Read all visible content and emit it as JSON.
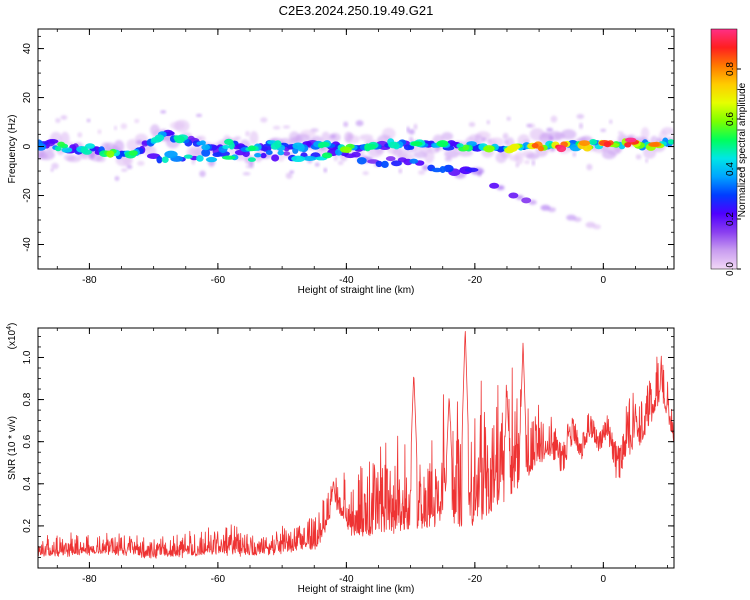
{
  "figure_title": "C2E3.2024.250.19.49.G21",
  "chart_data": [
    {
      "type": "heatmap",
      "xlabel": "Height of straight line (km)",
      "ylabel": "Frequency (Hz)",
      "xlim": [
        -88,
        11
      ],
      "ylim": [
        -50,
        48
      ],
      "xticks": [
        "-80",
        "-60",
        "-40",
        "-20",
        "0"
      ],
      "yticks": [
        "40",
        "20",
        "0",
        "-20",
        "-40"
      ],
      "colorbar": {
        "label": "Normalized spectral amplitude",
        "range": [
          0.0,
          0.96
        ],
        "ticks": [
          "0.0",
          "0.2",
          "0.4",
          "0.6",
          "0.8"
        ],
        "colors": [
          "#f2d8f6",
          "#c99df0",
          "#8a3ff0",
          "#4f00ff",
          "#003cff",
          "#00a4ff",
          "#00e6e6",
          "#00ff5a",
          "#7cff00",
          "#e6ff00",
          "#ffcc00",
          "#ff7a00",
          "#ff1f1f",
          "#ff2f86"
        ]
      },
      "main_band": [
        {
          "x": -88,
          "y": 0.5,
          "amp": 0.3
        },
        {
          "x": -86,
          "y": 1,
          "amp": 0.45
        },
        {
          "x": -84,
          "y": 0,
          "amp": 0.5
        },
        {
          "x": -82,
          "y": -1.5,
          "amp": 0.4
        },
        {
          "x": -80,
          "y": -1,
          "amp": 0.45
        },
        {
          "x": -78,
          "y": -2,
          "amp": 0.5
        },
        {
          "x": -76,
          "y": -3,
          "amp": 0.6
        },
        {
          "x": -74,
          "y": -2.5,
          "amp": 0.55
        },
        {
          "x": -72,
          "y": -1,
          "amp": 0.4
        },
        {
          "x": -70,
          "y": 3,
          "amp": 0.4
        },
        {
          "x": -68,
          "y": 4.5,
          "amp": 0.5
        },
        {
          "x": -66,
          "y": 4,
          "amp": 0.45
        },
        {
          "x": -64,
          "y": 2,
          "amp": 0.4
        },
        {
          "x": -62,
          "y": 0,
          "amp": 0.35
        },
        {
          "x": -60,
          "y": -1,
          "amp": 0.4
        },
        {
          "x": -58,
          "y": 1,
          "amp": 0.45
        },
        {
          "x": -56,
          "y": 0,
          "amp": 0.5
        },
        {
          "x": -54,
          "y": -1,
          "amp": 0.45
        },
        {
          "x": -52,
          "y": 1,
          "amp": 0.4
        },
        {
          "x": -50,
          "y": 0.5,
          "amp": 0.45
        },
        {
          "x": -48,
          "y": -0.5,
          "amp": 0.35
        },
        {
          "x": -46,
          "y": 0.5,
          "amp": 0.4
        },
        {
          "x": -44,
          "y": 0.5,
          "amp": 0.45
        },
        {
          "x": -42,
          "y": 0,
          "amp": 0.5
        },
        {
          "x": -40,
          "y": -1,
          "amp": 0.55
        },
        {
          "x": -38,
          "y": -0.5,
          "amp": 0.5
        },
        {
          "x": -36,
          "y": 1,
          "amp": 0.45
        },
        {
          "x": -34,
          "y": 0.5,
          "amp": 0.4
        },
        {
          "x": -32,
          "y": 1,
          "amp": 0.45
        },
        {
          "x": -30,
          "y": 0,
          "amp": 0.5
        },
        {
          "x": -28,
          "y": 0.5,
          "amp": 0.45
        },
        {
          "x": -26,
          "y": 1,
          "amp": 0.5
        },
        {
          "x": -24,
          "y": 0.5,
          "amp": 0.45
        },
        {
          "x": -22,
          "y": 0,
          "amp": 0.5
        },
        {
          "x": -20,
          "y": 0.5,
          "amp": 0.55
        },
        {
          "x": -18,
          "y": 0,
          "amp": 0.55
        },
        {
          "x": -16,
          "y": -0.5,
          "amp": 0.6
        },
        {
          "x": -14,
          "y": -0.5,
          "amp": 0.65
        },
        {
          "x": -12,
          "y": 0,
          "amp": 0.7
        },
        {
          "x": -10,
          "y": 0,
          "amp": 0.8
        },
        {
          "x": -8,
          "y": 0,
          "amp": 0.9
        },
        {
          "x": -6,
          "y": 0.5,
          "amp": 0.85
        },
        {
          "x": -4,
          "y": 0.5,
          "amp": 0.7
        },
        {
          "x": -2,
          "y": 0.5,
          "amp": 0.75
        },
        {
          "x": 0,
          "y": 1,
          "amp": 0.8
        },
        {
          "x": 2,
          "y": 1,
          "amp": 0.85
        },
        {
          "x": 4,
          "y": 1.5,
          "amp": 0.9
        },
        {
          "x": 6,
          "y": 1,
          "amp": 0.8
        },
        {
          "x": 8,
          "y": 1,
          "amp": 0.75
        },
        {
          "x": 10,
          "y": 1.5,
          "amp": 0.8
        },
        {
          "x": 11,
          "y": 1.5,
          "amp": 0.75
        }
      ],
      "secondary_band": [
        {
          "x": -70,
          "y": -4,
          "amp": 0.4
        },
        {
          "x": -66,
          "y": -5,
          "amp": 0.45
        },
        {
          "x": -62,
          "y": -4,
          "amp": 0.4
        },
        {
          "x": -58,
          "y": -3.5,
          "amp": 0.45
        },
        {
          "x": -54,
          "y": -4,
          "amp": 0.4
        },
        {
          "x": -50,
          "y": -3,
          "amp": 0.35
        },
        {
          "x": -46,
          "y": -4,
          "amp": 0.4
        },
        {
          "x": -42,
          "y": -3,
          "amp": 0.45
        },
        {
          "x": -38,
          "y": -5,
          "amp": 0.35
        },
        {
          "x": -34,
          "y": -6,
          "amp": 0.3
        },
        {
          "x": -30,
          "y": -7,
          "amp": 0.3
        },
        {
          "x": -26,
          "y": -9,
          "amp": 0.3
        },
        {
          "x": -23,
          "y": -10,
          "amp": 0.25
        },
        {
          "x": -19,
          "y": -11,
          "amp": 0.2
        }
      ],
      "drift_trail": [
        {
          "x": -17,
          "y": -16,
          "amp": 0.2
        },
        {
          "x": -14,
          "y": -20,
          "amp": 0.18
        },
        {
          "x": -12,
          "y": -22,
          "amp": 0.15
        },
        {
          "x": -9,
          "y": -25,
          "amp": 0.12
        },
        {
          "x": -5,
          "y": -29,
          "amp": 0.1
        },
        {
          "x": -2,
          "y": -32,
          "amp": 0.06
        }
      ],
      "noise_seed": 7
    },
    {
      "type": "line",
      "xlabel": "Height of straight line (km)",
      "ylabel": "SNR (10 * v/v)",
      "y_multiplier": "(x10",
      "y_multiplier_exp": "4",
      "xlim": [
        -88,
        11
      ],
      "ylim": [
        0.0,
        1.14
      ],
      "xticks": [
        "-80",
        "-60",
        "-40",
        "-20",
        "0"
      ],
      "yticks": [
        "0.2",
        "0.4",
        "0.6",
        "0.8",
        "1.0"
      ],
      "series_color": "#ee3333",
      "envelope": [
        {
          "x": -88,
          "base": 0.06,
          "noise": 0.06
        },
        {
          "x": -76,
          "base": 0.07,
          "noise": 0.08
        },
        {
          "x": -70,
          "base": 0.05,
          "noise": 0.06
        },
        {
          "x": -60,
          "base": 0.07,
          "noise": 0.1
        },
        {
          "x": -55,
          "base": 0.06,
          "noise": 0.08
        },
        {
          "x": -48,
          "base": 0.08,
          "noise": 0.1
        },
        {
          "x": -44,
          "base": 0.1,
          "noise": 0.15
        },
        {
          "x": -42,
          "base": 0.3,
          "noise": 0.12
        },
        {
          "x": -39,
          "base": 0.15,
          "noise": 0.25
        },
        {
          "x": -30,
          "base": 0.18,
          "noise": 0.35
        },
        {
          "x": -25,
          "base": 0.2,
          "noise": 0.45
        },
        {
          "x": -20,
          "base": 0.2,
          "noise": 0.5
        },
        {
          "x": -14,
          "base": 0.35,
          "noise": 0.45
        },
        {
          "x": -10,
          "base": 0.5,
          "noise": 0.2
        },
        {
          "x": -5,
          "base": 0.6,
          "noise": 0.15
        },
        {
          "x": 0,
          "base": 0.65,
          "noise": 0.1
        },
        {
          "x": 3,
          "base": 0.5,
          "noise": 0.25
        },
        {
          "x": 6,
          "base": 0.6,
          "noise": 0.2
        },
        {
          "x": 9,
          "base": 0.8,
          "noise": 0.2
        },
        {
          "x": 11,
          "base": 0.6,
          "noise": 0.15
        }
      ],
      "peaks": [
        {
          "x": -21.5,
          "y": 1.14
        },
        {
          "x": -12.5,
          "y": 1.08
        },
        {
          "x": -29.5,
          "y": 0.93
        },
        {
          "x": -15,
          "y": 0.85
        },
        {
          "x": -24,
          "y": 0.82
        },
        {
          "x": 9,
          "y": 1.0
        },
        {
          "x": 5,
          "y": 0.78
        },
        {
          "x": -42,
          "y": 0.42
        }
      ],
      "noise_seed": 13
    }
  ]
}
